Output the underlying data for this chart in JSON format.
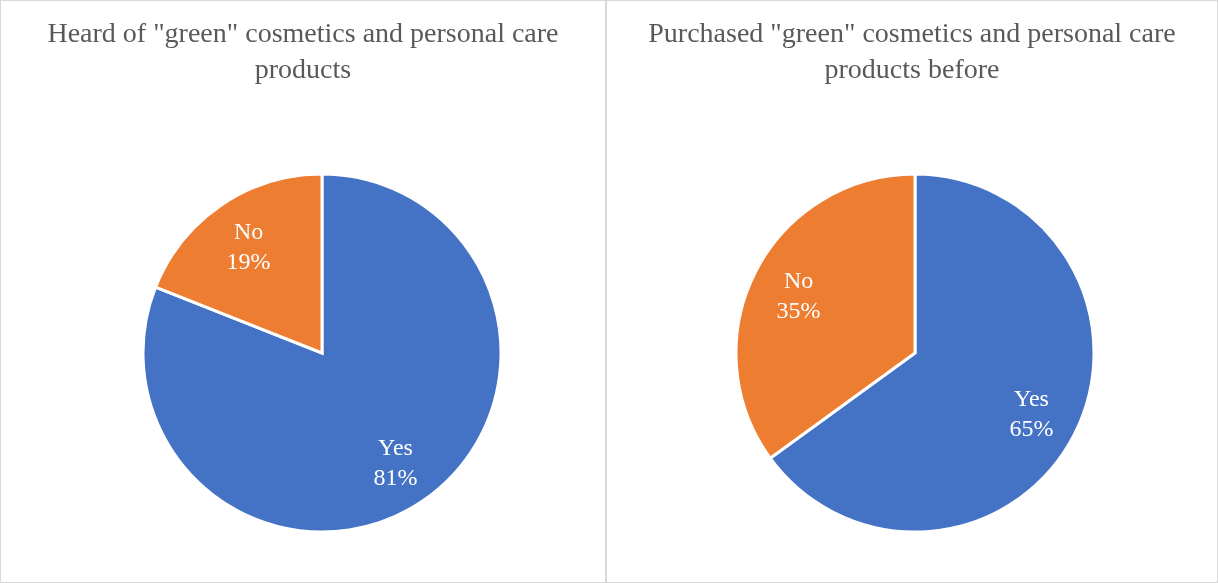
{
  "chart_data": [
    {
      "type": "pie",
      "title": "Heard of \"green\" cosmetics and personal care products",
      "categories": [
        "Yes",
        "No"
      ],
      "values": [
        81,
        19
      ],
      "value_labels": [
        "81%",
        "19%"
      ],
      "colors": [
        "#4472c4",
        "#ed7d31"
      ],
      "legend": false
    },
    {
      "type": "pie",
      "title": "Purchased \"green\" cosmetics and personal care products before",
      "categories": [
        "Yes",
        "No"
      ],
      "values": [
        65,
        35
      ],
      "value_labels": [
        "65%",
        "35%"
      ],
      "colors": [
        "#4472c4",
        "#ed7d31"
      ],
      "legend": false
    }
  ]
}
